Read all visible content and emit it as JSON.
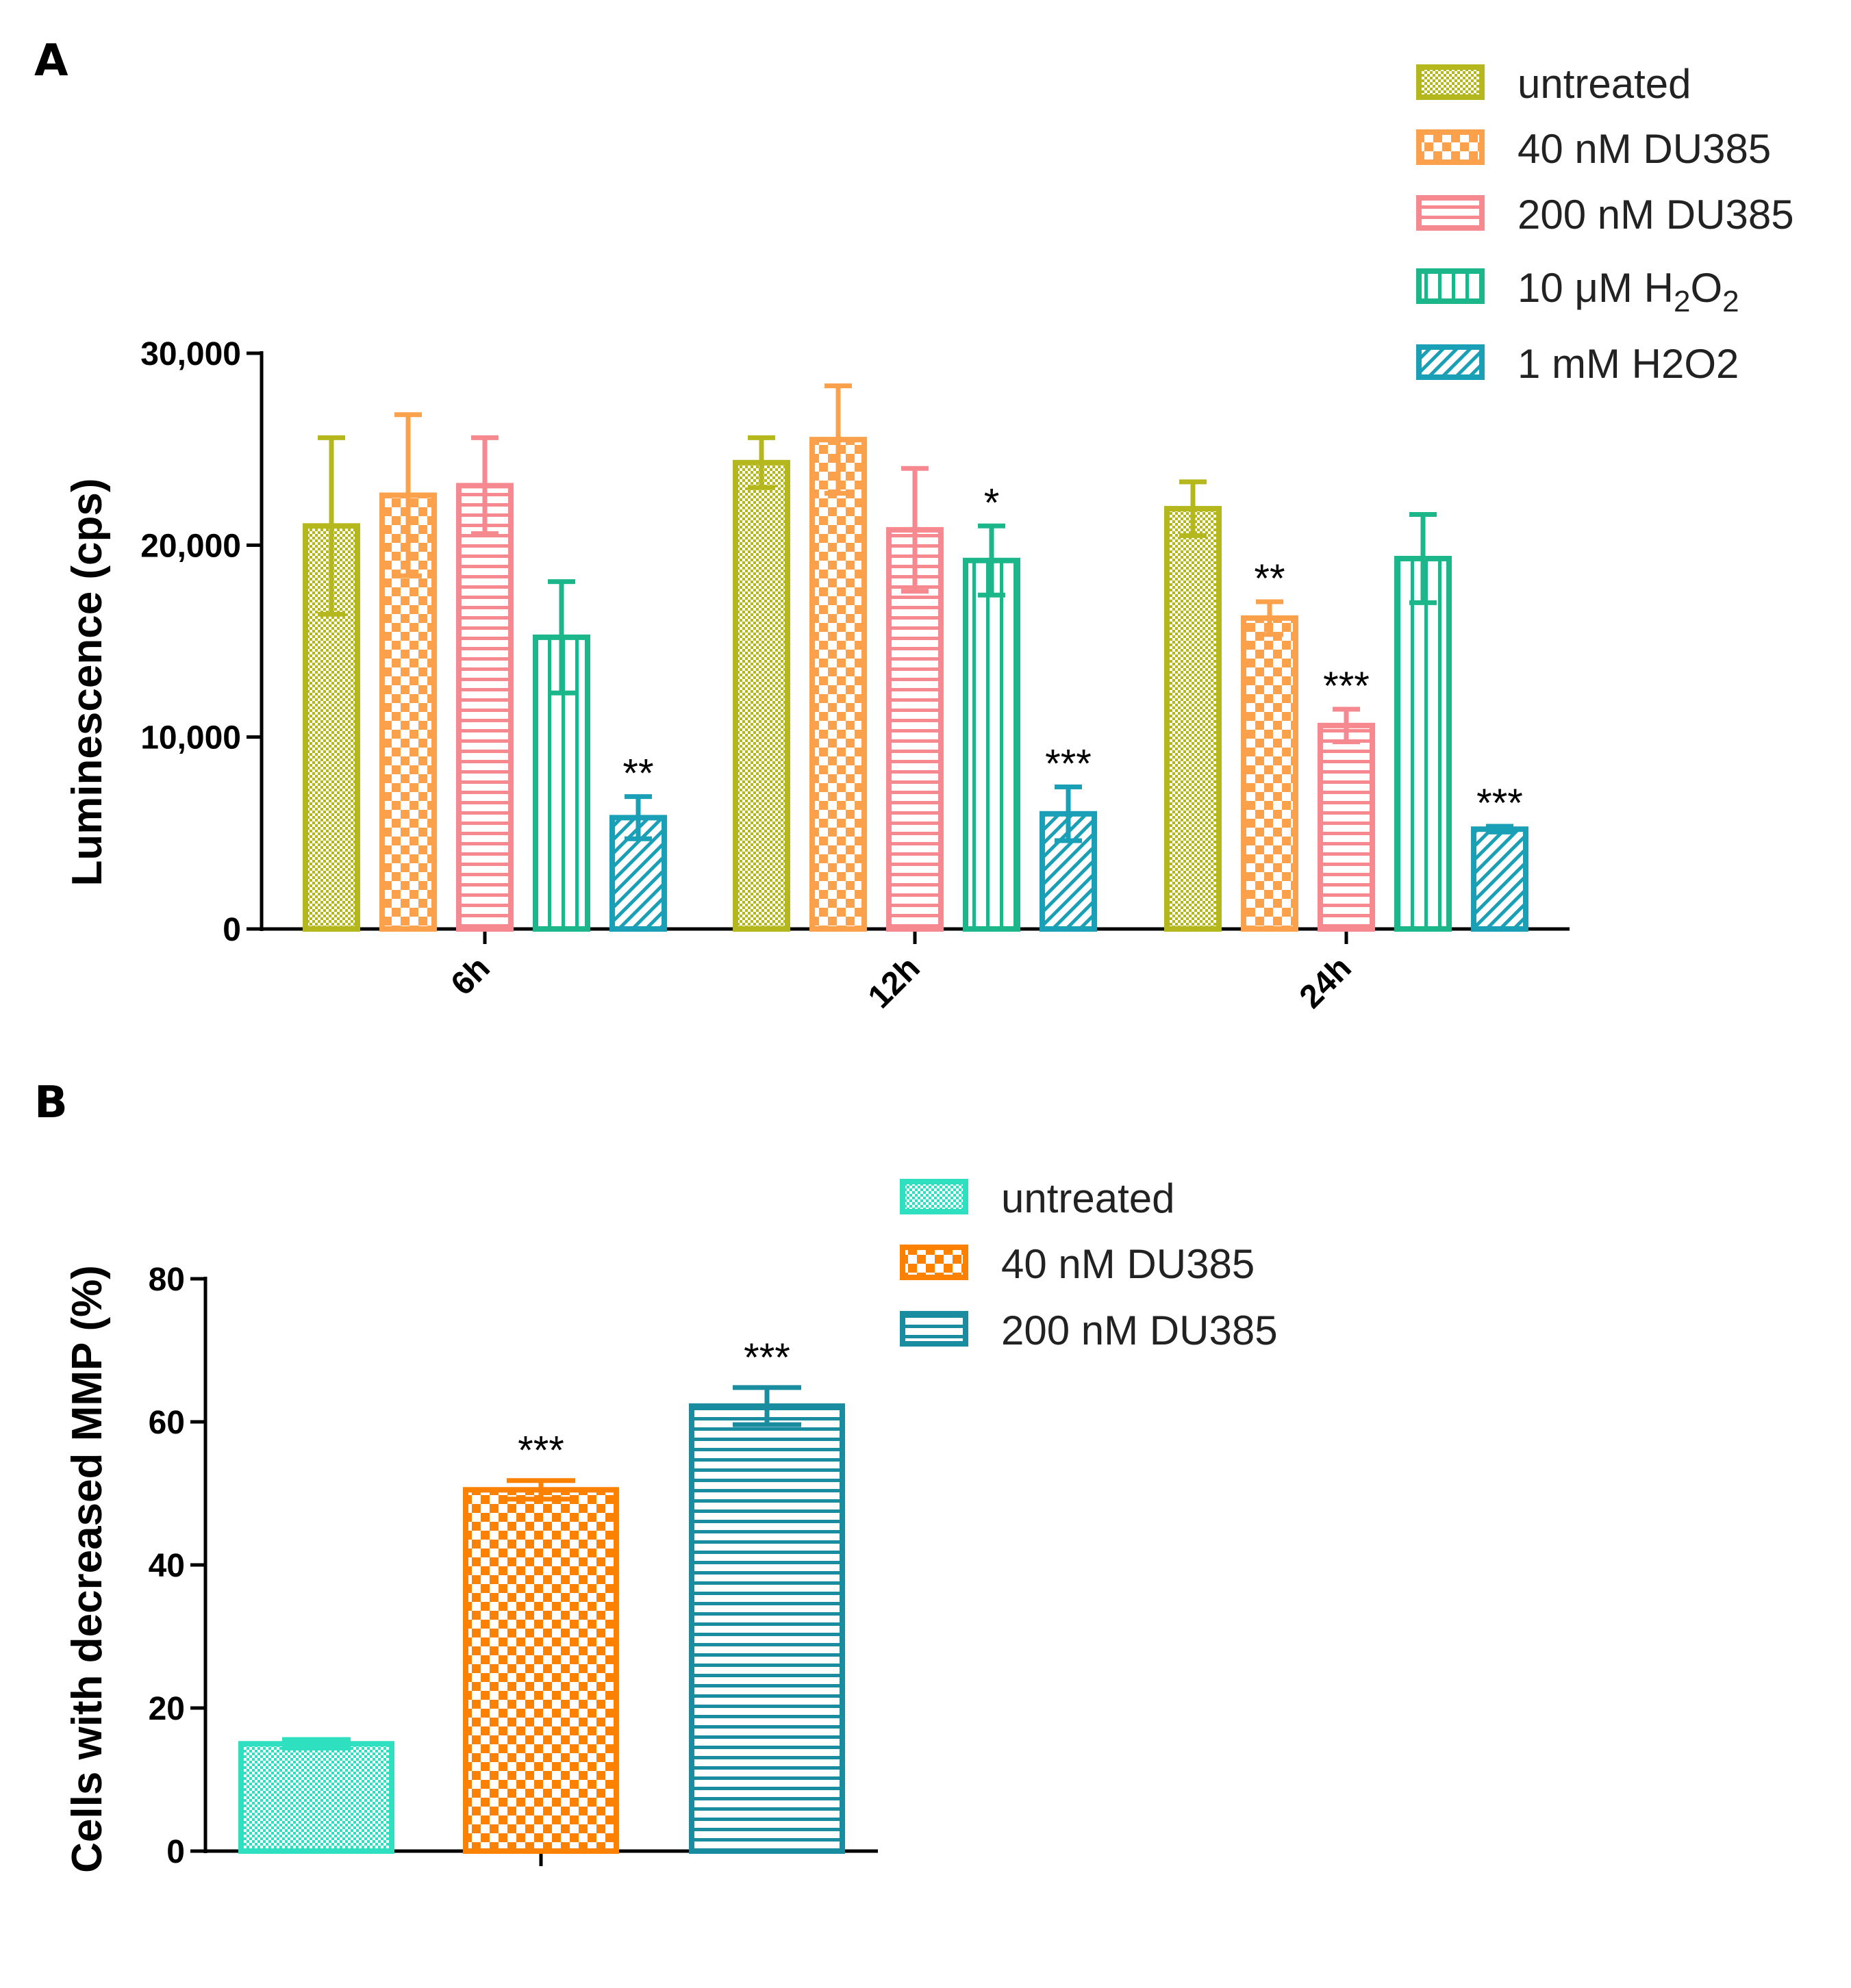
{
  "chart_data": [
    {
      "panel": "A",
      "type": "bar",
      "ylabel": "Luminescence (cps)",
      "xlabel": "",
      "ylim": [
        0,
        30000
      ],
      "yticks": [
        "0",
        "10,000",
        "20,000",
        "30,000"
      ],
      "categories": [
        "6h",
        "12h",
        "24h"
      ],
      "legend_position": "top-right",
      "series": [
        {
          "name": "untreated",
          "color": "#b5b81c",
          "pattern": "dots",
          "values": [
            21000,
            24300,
            21900
          ],
          "errors": [
            4600,
            1300,
            1400
          ],
          "annotations": [
            "",
            "",
            ""
          ]
        },
        {
          "name": "40 nM DU385",
          "color": "#fba04b",
          "pattern": "checker",
          "values": [
            22600,
            25500,
            16200
          ],
          "errors": [
            4200,
            2800,
            850
          ],
          "annotations": [
            "",
            "",
            "**"
          ]
        },
        {
          "name": "200 nM DU385",
          "color": "#f6898f",
          "pattern": "hlines",
          "values": [
            23100,
            20800,
            10600
          ],
          "errors": [
            2500,
            3200,
            850
          ],
          "annotations": [
            "",
            "",
            "***"
          ]
        },
        {
          "name": "10 μM H2O2",
          "color": "#1bb68a",
          "pattern": "vlines",
          "values": [
            15200,
            19200,
            19300
          ],
          "errors": [
            2900,
            1800,
            2300
          ],
          "annotations": [
            "",
            "*",
            ""
          ]
        },
        {
          "name": "1 mM H2O2",
          "color": "#1aa0b6",
          "pattern": "diag",
          "values": [
            5800,
            6000,
            5200
          ],
          "errors": [
            1100,
            1400,
            150
          ],
          "annotations": [
            "**",
            "***",
            "***"
          ]
        }
      ]
    },
    {
      "panel": "B",
      "type": "bar",
      "ylabel": "Cells with decreased MMP (%)",
      "xlabel": "",
      "ylim": [
        0,
        80
      ],
      "yticks": [
        "0",
        "20",
        "40",
        "60",
        "80"
      ],
      "categories": [
        ""
      ],
      "legend_position": "top-right",
      "series": [
        {
          "name": "untreated",
          "color": "#2fe0c0",
          "pattern": "dots",
          "values": [
            15
          ],
          "errors": [
            0.6
          ],
          "annotations": [
            ""
          ]
        },
        {
          "name": "40 nM DU385",
          "color": "#fd8100",
          "pattern": "checker",
          "values": [
            50.5
          ],
          "errors": [
            1.3
          ],
          "annotations": [
            "***"
          ]
        },
        {
          "name": "200 nM DU385",
          "color": "#1a8ca0",
          "pattern": "hlines",
          "values": [
            62.2
          ],
          "errors": [
            2.6
          ],
          "annotations": [
            "***"
          ]
        }
      ]
    }
  ]
}
